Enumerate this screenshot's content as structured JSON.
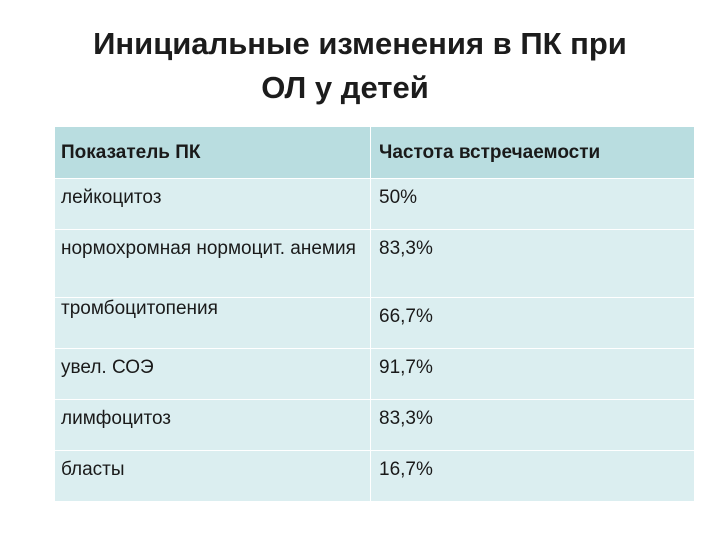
{
  "slide": {
    "title_line1": "Инициальные изменения в ПК при",
    "title_line2": "ОЛ у детей"
  },
  "table": {
    "headers": [
      "Показатель ПК",
      "Частота встречаемости"
    ],
    "rows": [
      [
        "лейкоцитоз",
        "50%"
      ],
      [
        "нормохромная нормоцит. анемия",
        "83,3%"
      ],
      [
        "тромбоцитопения",
        "66,7%"
      ],
      [
        "увел. СОЭ",
        "91,7%"
      ],
      [
        "лимфоцитоз",
        "83,3%"
      ],
      [
        "бласты",
        "16,7%"
      ]
    ]
  },
  "colors": {
    "header_bg": "#b9dde0",
    "body_bg": "#dbeef0"
  }
}
